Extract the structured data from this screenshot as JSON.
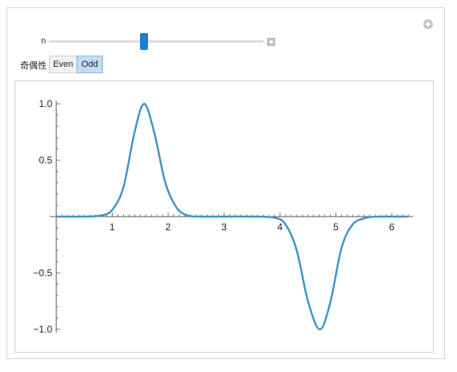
{
  "controls": {
    "slider": {
      "label": "n",
      "position_fraction": 0.44
    },
    "parity": {
      "label": "奇偶性",
      "options": [
        "Even",
        "Odd"
      ],
      "selected": "Odd"
    }
  },
  "colors": {
    "curve": "#3f93c4",
    "slider_thumb": "#1a7fd6",
    "selected_option": "#c3dcf3"
  },
  "icons": [
    "add-icon",
    "slider-plus-icon"
  ],
  "chart_data": {
    "type": "line",
    "xlim": [
      0,
      6.35
    ],
    "ylim": [
      -1.0,
      1.0
    ],
    "x_ticks": [
      "1",
      "2",
      "3",
      "4",
      "5",
      "6"
    ],
    "y_ticks": [
      "1.0",
      "0.5",
      "−0.5",
      "−1.0"
    ],
    "grid": false,
    "series": [
      {
        "x": [
          0,
          0.5,
          0.8,
          1.0,
          1.2,
          1.4,
          1.5708,
          1.75,
          1.95,
          2.15,
          2.35,
          2.6,
          3.0,
          3.5,
          3.9,
          4.1,
          4.3,
          4.5,
          4.7124,
          4.9,
          5.1,
          5.3,
          5.55,
          5.8,
          6.1,
          6.28
        ],
        "y": [
          0,
          0.0,
          0.01,
          0.06,
          0.26,
          0.75,
          1.0,
          0.75,
          0.3,
          0.08,
          0.01,
          0.0,
          0,
          0,
          -0.01,
          -0.07,
          -0.3,
          -0.75,
          -1.0,
          -0.76,
          -0.28,
          -0.07,
          -0.01,
          0.0,
          0,
          0
        ]
      }
    ]
  }
}
